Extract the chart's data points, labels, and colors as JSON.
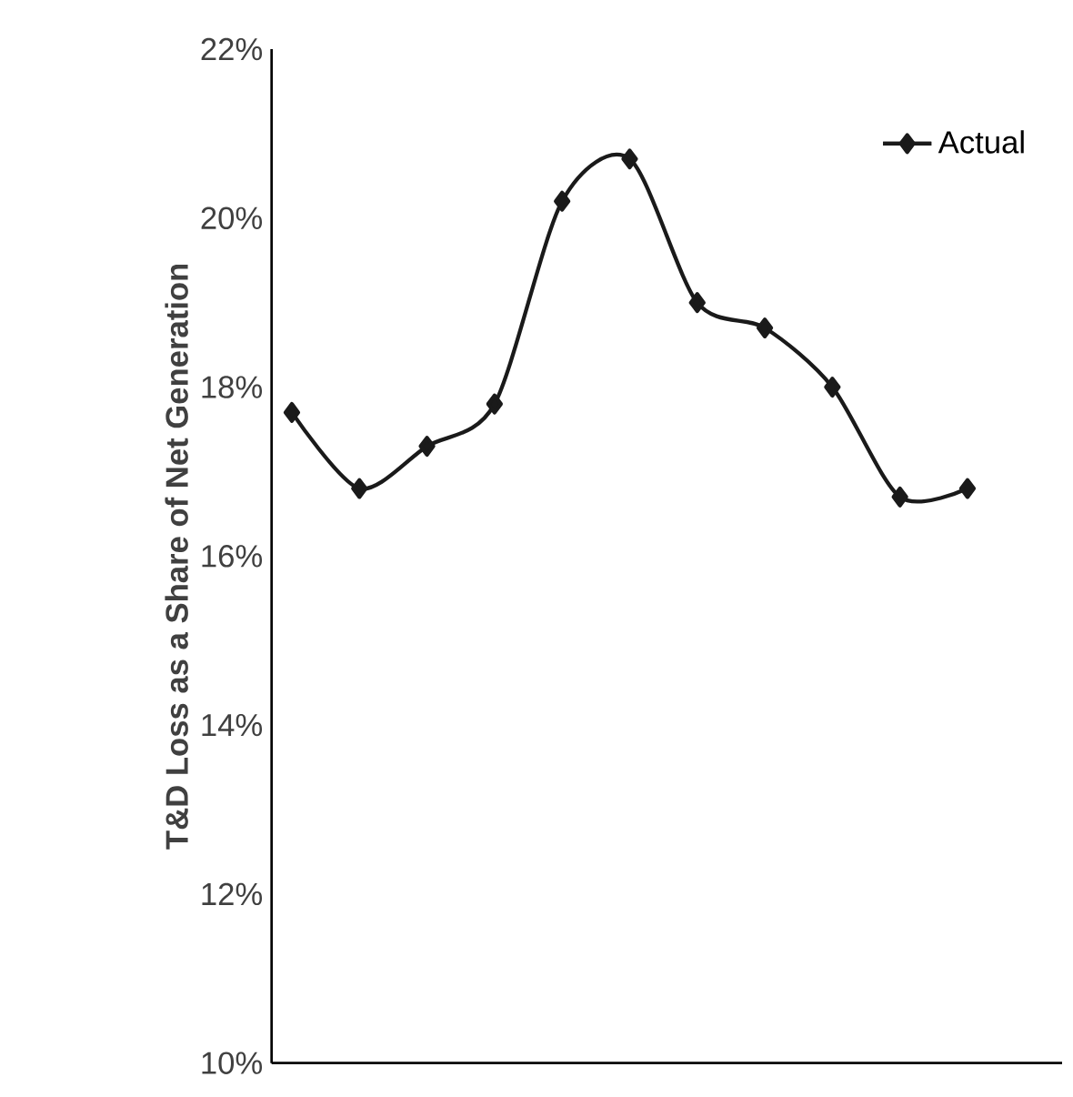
{
  "chart_data": {
    "type": "line",
    "ylabel": "T&D Loss as a Share of Net Generation",
    "categories": [
      null,
      null,
      null,
      null,
      null,
      null,
      null,
      null,
      null,
      null,
      null
    ],
    "series": [
      {
        "name": "Actual",
        "color": "#1a1a1a",
        "values": [
          17.7,
          16.8,
          17.3,
          17.8,
          20.2,
          20.7,
          19.0,
          18.7,
          18.0,
          16.7,
          16.8
        ]
      }
    ],
    "ylim": [
      10,
      22
    ],
    "yticks": [
      {
        "value": 10,
        "label": "10%"
      },
      {
        "value": 12,
        "label": "12%"
      },
      {
        "value": 14,
        "label": "14%"
      },
      {
        "value": 16,
        "label": "16%"
      },
      {
        "value": 18,
        "label": "18%"
      },
      {
        "value": 20,
        "label": "20%"
      },
      {
        "value": 22,
        "label": "22%"
      }
    ],
    "tick_labels": "y",
    "legend": "top right",
    "marker": "diamond",
    "line_style": "solid",
    "grid": false
  }
}
